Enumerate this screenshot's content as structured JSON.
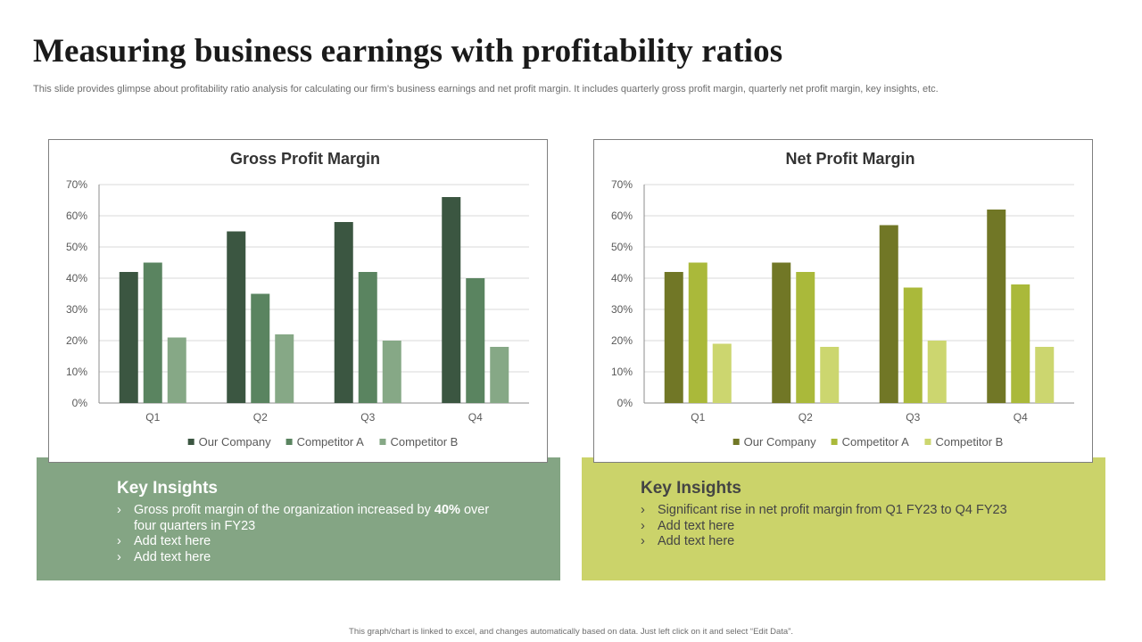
{
  "page": {
    "title": "Measuring business earnings with profitability ratios",
    "subtitle": "This slide provides glimpse about profitability ratio analysis for calculating our firm’s business earnings and net profit margin. It includes quarterly gross profit margin, quarterly net profit margin, key insights, etc.",
    "footer": "This graph/chart is linked to excel, and changes automatically based on data. Just left click on it and select “Edit Data”."
  },
  "insights": {
    "gross": {
      "heading": "Key Insights",
      "item1_pre": "Gross profit margin of the organization increased by ",
      "item1_bold": "40%",
      "item1_post": " over four quarters in FY23",
      "item2": "Add text here",
      "item3": "Add text here"
    },
    "net": {
      "heading": "Key Insights",
      "item1": "Significant rise in net profit margin from Q1 FY23 to Q4 FY23",
      "item2": "Add text here",
      "item3": "Add text here"
    }
  },
  "chart_data": [
    {
      "type": "bar",
      "title": "Gross Profit Margin",
      "categories": [
        "Q1",
        "Q2",
        "Q3",
        "Q4"
      ],
      "series": [
        {
          "name": "Our Company",
          "values": [
            42,
            55,
            58,
            66
          ],
          "color": "#3b5641"
        },
        {
          "name": "Competitor A",
          "values": [
            45,
            35,
            42,
            40
          ],
          "color": "#5a8460"
        },
        {
          "name": "Competitor B",
          "values": [
            21,
            22,
            20,
            18
          ],
          "color": "#86a886"
        }
      ],
      "ylim": [
        0,
        70
      ],
      "yticks": [
        "0%",
        "10%",
        "20%",
        "30%",
        "40%",
        "50%",
        "60%",
        "70%"
      ],
      "xlabel": "",
      "ylabel": "",
      "legend": "bottom",
      "grid": true
    },
    {
      "type": "bar",
      "title": "Net Profit Margin",
      "categories": [
        "Q1",
        "Q2",
        "Q3",
        "Q4"
      ],
      "series": [
        {
          "name": "Our Company",
          "values": [
            42,
            45,
            57,
            62
          ],
          "color": "#717726"
        },
        {
          "name": "Competitor A",
          "values": [
            45,
            42,
            37,
            38
          ],
          "color": "#aab93a"
        },
        {
          "name": "Competitor B",
          "values": [
            19,
            18,
            20,
            18
          ],
          "color": "#ccd66f"
        }
      ],
      "ylim": [
        0,
        70
      ],
      "yticks": [
        "0%",
        "10%",
        "20%",
        "30%",
        "40%",
        "50%",
        "60%",
        "70%"
      ],
      "xlabel": "",
      "ylabel": "",
      "legend": "bottom",
      "grid": true
    }
  ]
}
